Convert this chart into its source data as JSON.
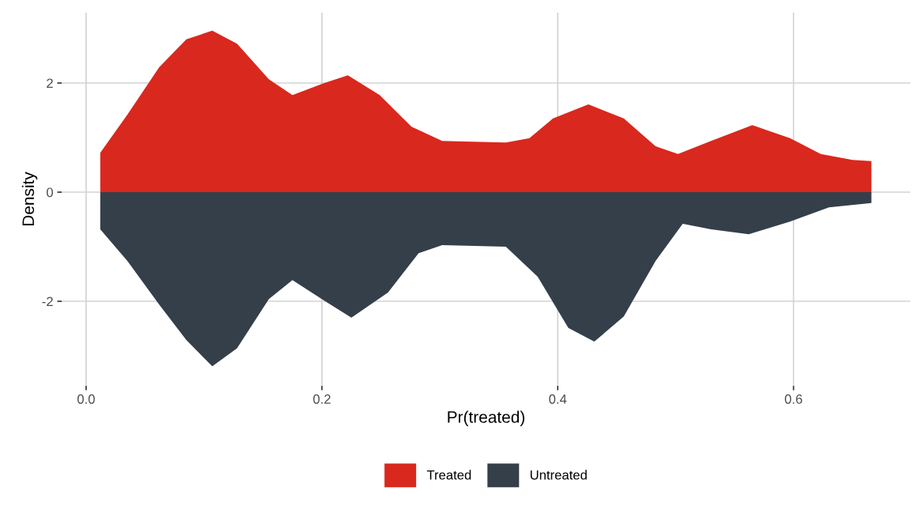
{
  "chart_data": {
    "type": "area",
    "xlabel": "Pr(treated)",
    "ylabel": "Density",
    "xlim": [
      -0.0207,
      0.699
    ],
    "xticks": [
      {
        "value": 0,
        "label": "0.0"
      },
      {
        "value": 0.2,
        "label": "0.2"
      },
      {
        "value": 0.4,
        "label": "0.4"
      },
      {
        "value": 0.6,
        "label": "0.6"
      }
    ],
    "ylim": [
      -3.55,
      3.29
    ],
    "yticks": [
      {
        "value": -2,
        "label": "-2"
      },
      0,
      2
    ],
    "grid": true,
    "legend": "bottom",
    "series": [
      {
        "name": "Treated",
        "color": "#d9281e",
        "x": [
          0.012,
          0.035,
          0.062,
          0.085,
          0.107,
          0.128,
          0.155,
          0.175,
          0.202,
          0.222,
          0.249,
          0.276,
          0.302,
          0.356,
          0.376,
          0.396,
          0.426,
          0.456,
          0.483,
          0.502,
          0.53,
          0.565,
          0.597,
          0.623,
          0.65,
          0.666
        ],
        "values": [
          0.72,
          1.42,
          2.29,
          2.8,
          2.96,
          2.72,
          2.07,
          1.78,
          2.0,
          2.14,
          1.78,
          1.2,
          0.94,
          0.91,
          0.99,
          1.35,
          1.61,
          1.35,
          0.84,
          0.7,
          0.94,
          1.23,
          0.99,
          0.7,
          0.59,
          0.57
        ]
      },
      {
        "name": "Untreated",
        "color": "#343f4a",
        "x": [
          0.012,
          0.035,
          0.062,
          0.085,
          0.107,
          0.128,
          0.155,
          0.175,
          0.202,
          0.225,
          0.256,
          0.282,
          0.302,
          0.356,
          0.383,
          0.409,
          0.431,
          0.456,
          0.483,
          0.506,
          0.53,
          0.562,
          0.597,
          0.63,
          0.666
        ],
        "values": [
          -0.68,
          -1.26,
          -2.06,
          -2.71,
          -3.19,
          -2.86,
          -1.96,
          -1.61,
          -1.99,
          -2.3,
          -1.84,
          -1.12,
          -0.97,
          -1.0,
          -1.55,
          -2.49,
          -2.74,
          -2.28,
          -1.26,
          -0.58,
          -0.68,
          -0.77,
          -0.54,
          -0.28,
          -0.2
        ]
      }
    ]
  }
}
